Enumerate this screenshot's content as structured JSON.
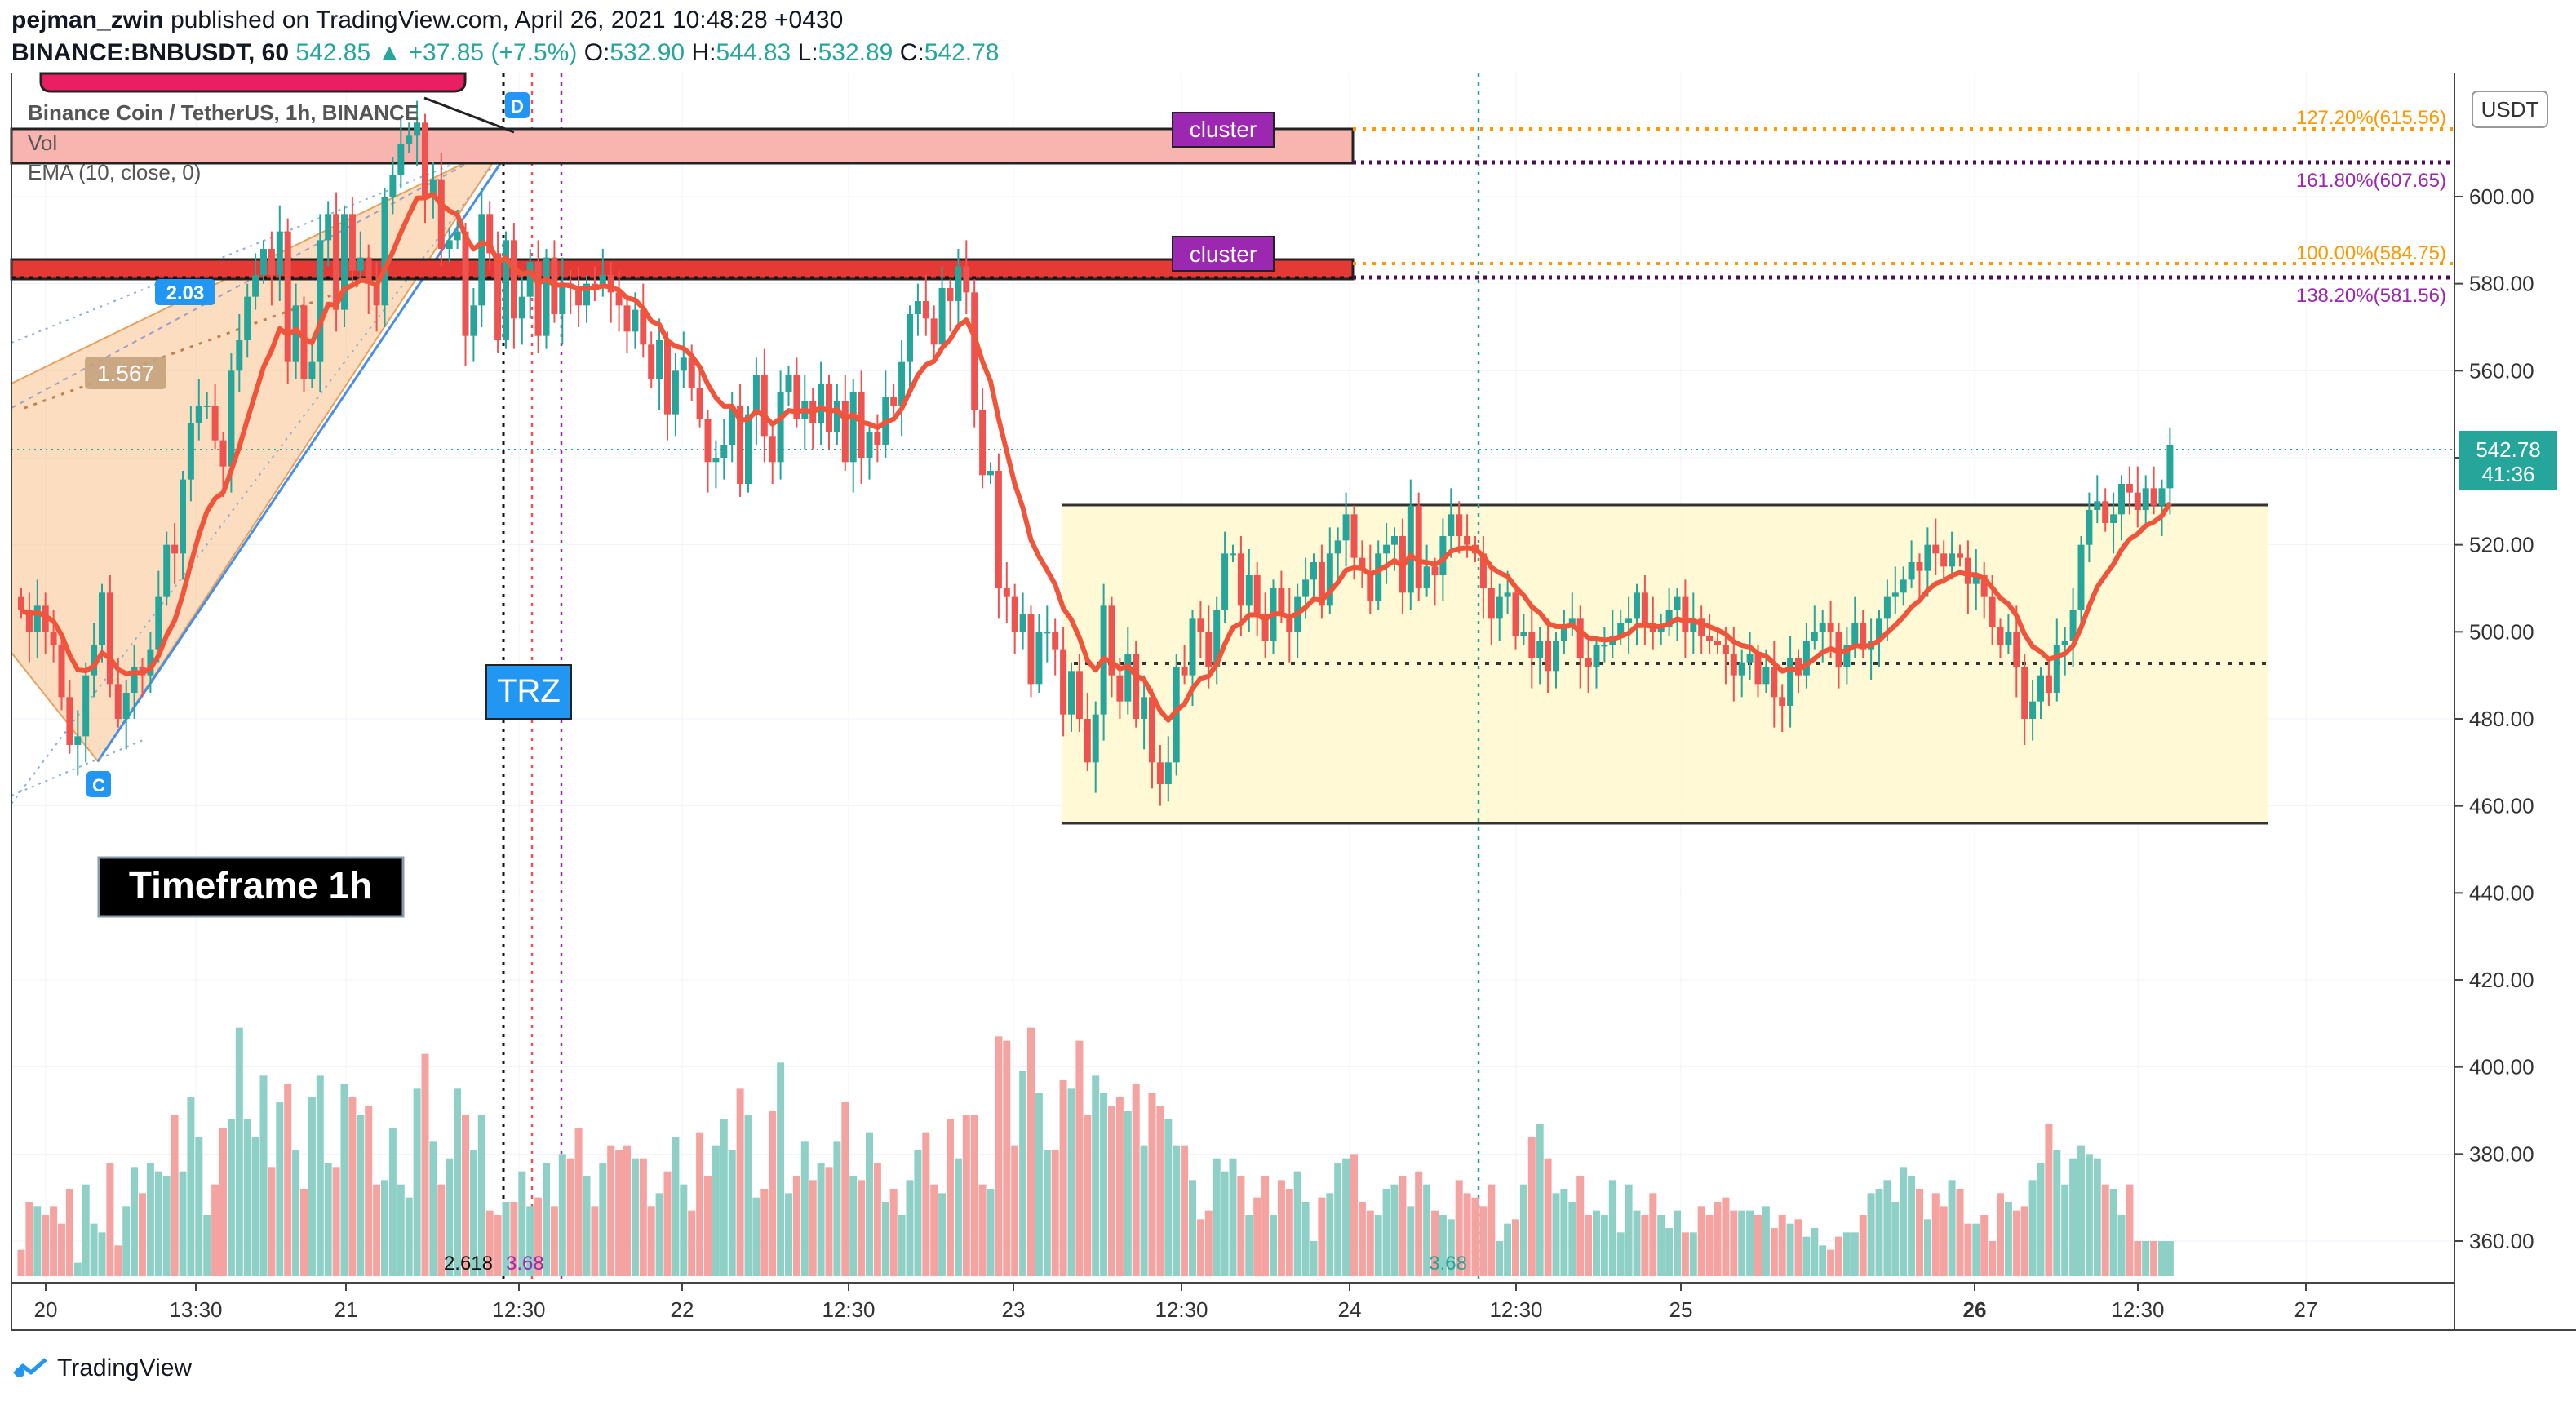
{
  "header": {
    "author": "pejman_zwin",
    "published_text": "published on TradingView.com, April 26, 2021 10:48:28 +0430",
    "symbol": "BINANCE:BNBUSDT, 60",
    "last": "542.85",
    "change": "▲ +37.85 (+7.5%)",
    "o_label": "O:",
    "o": "532.90",
    "h_label": "H:",
    "h": "544.83",
    "l_label": "L:",
    "l": "532.89",
    "c_label": "C:",
    "c": "542.78"
  },
  "legend": {
    "title": "Binance Coin / TetherUS, 1h, BINANCE",
    "vol": "Vol",
    "ema": "EMA (10, close, 0)"
  },
  "annotations": {
    "cluster_label": "cluster",
    "trz": "TRZ",
    "timeframe": "Timeframe 1h",
    "ratio_203": "2.03",
    "ratio_1567": "1.567",
    "pivot_d": "D",
    "pivot_c": "C",
    "fib_1272": "127.20%(615.56)",
    "fib_1618": "161.80%(607.65)",
    "fib_100": "100.00%(584.75)",
    "fib_1382": "138.20%(581.56)",
    "bottom_2618": "2.618",
    "bottom_368a": "3.68",
    "bottom_368b": "3.68"
  },
  "axis": {
    "currency": "USDT",
    "price_badge": "542.78",
    "time_badge": "41:36"
  },
  "footer": {
    "brand": "TradingView"
  },
  "colors": {
    "up": "#26a69a",
    "down": "#ef5350",
    "ema": "#f0553c",
    "vol_up": "#8fd0c6",
    "vol_down": "#f4a3a0",
    "cluster": "#9c27b0",
    "trz": "#2196f3",
    "orange": "#ff9800",
    "purple": "#9c27b0"
  },
  "chart_data": {
    "type": "candlestick",
    "title": "Binance Coin / TetherUS, 1h, BINANCE",
    "ylim": [
      350,
      630
    ],
    "y_ticks": [
      360,
      380,
      400,
      420,
      440,
      460,
      480,
      500,
      520,
      540,
      560,
      580,
      600
    ],
    "x_tick_labels": [
      "20",
      "13:30",
      "21",
      "12:30",
      "22",
      "12:30",
      "23",
      "12:30",
      "24",
      "12:30",
      "25",
      "26",
      "12:30",
      "27"
    ],
    "ema_period": 10,
    "levels": {
      "fib_127_2": 615.56,
      "fib_161_8": 607.65,
      "fib_100": 584.75,
      "fib_138_2": 581.56,
      "range_top": 529.5,
      "range_mid": 494,
      "range_bottom": 457.5,
      "last_price": 542.78
    },
    "ohlc_close": [
      505,
      500,
      506,
      500,
      497,
      485,
      474,
      476,
      490,
      497,
      509,
      488,
      480,
      486,
      492,
      490,
      496,
      508,
      520,
      518,
      535,
      548,
      552,
      552,
      544,
      538,
      560,
      567,
      577,
      582,
      588,
      582,
      592,
      562,
      575,
      558,
      562,
      590,
      596,
      574,
      596,
      583,
      586,
      580,
      575,
      600,
      605,
      612,
      614,
      617,
      600,
      604,
      588,
      590,
      592,
      568,
      575,
      596,
      587,
      567,
      590,
      572,
      577,
      585,
      568,
      586,
      573,
      580,
      579,
      575,
      580,
      579,
      582,
      578,
      575,
      569,
      574,
      566,
      558,
      567,
      550,
      560,
      563,
      556,
      549,
      539,
      540,
      543,
      552,
      534,
      550,
      559,
      545,
      539,
      555,
      559,
      549,
      553,
      548,
      557,
      546,
      553,
      539,
      555,
      540,
      546,
      543,
      554,
      552,
      562,
      573,
      576,
      572,
      566,
      579,
      576,
      584,
      578,
      551,
      536,
      537,
      510,
      508,
      500,
      504,
      488,
      500,
      500,
      496,
      481,
      491,
      480,
      470,
      481,
      506,
      490,
      484,
      495,
      480,
      485,
      470,
      465,
      470,
      492,
      490,
      503,
      500,
      492,
      505,
      518,
      518,
      506,
      513,
      504,
      498,
      510,
      504,
      500,
      508,
      512,
      516,
      506,
      518,
      521,
      527,
      517,
      514,
      507,
      518,
      520,
      522,
      509,
      529,
      510,
      515,
      513,
      522,
      527,
      522,
      520,
      518,
      510,
      503,
      508,
      509,
      499,
      500,
      494,
      498,
      491,
      498,
      501,
      503,
      494,
      492,
      497,
      497,
      499,
      502,
      503,
      509,
      502,
      500,
      501,
      505,
      508,
      500,
      503,
      499,
      498,
      497,
      495,
      490,
      493,
      495,
      488,
      492,
      485,
      483,
      494,
      490,
      498,
      500,
      502,
      500,
      492,
      497,
      502,
      496,
      498,
      503,
      508,
      509,
      512,
      516,
      514,
      520,
      518,
      515,
      518,
      517,
      511,
      513,
      508,
      501,
      497,
      500,
      492,
      480,
      484,
      490,
      486,
      497,
      498,
      505,
      520,
      528,
      530,
      525,
      527,
      534,
      532,
      528,
      533,
      529,
      533,
      543
    ],
    "volume": [
      358,
      369,
      368,
      366,
      368,
      364,
      372,
      355,
      373,
      364,
      362,
      378,
      359,
      368,
      377,
      371,
      378,
      376,
      375,
      389,
      376,
      393,
      384,
      366,
      373,
      386,
      388,
      409,
      388,
      384,
      398,
      377,
      392,
      396,
      381,
      372,
      393,
      398,
      378,
      377,
      396,
      393,
      389,
      391,
      373,
      374,
      386,
      373,
      370,
      395,
      403,
      383,
      373,
      379,
      395,
      389,
      381,
      389,
      367,
      366,
      369,
      369,
      376,
      368,
      370,
      378,
      368,
      380,
      379,
      386,
      375,
      368,
      378,
      382,
      381,
      382,
      379,
      379,
      368,
      371,
      376,
      384,
      373,
      367,
      385,
      375,
      382,
      388,
      381,
      395,
      389,
      370,
      372,
      390,
      401,
      371,
      375,
      383,
      374,
      378,
      377,
      383,
      392,
      375,
      374,
      385,
      378,
      369,
      372,
      366,
      374,
      381,
      385,
      373,
      371,
      388,
      379,
      389,
      389,
      373,
      372,
      407,
      406,
      382,
      399,
      409,
      394,
      381,
      381,
      397,
      395,
      406,
      389,
      398,
      394,
      391,
      393,
      390,
      396,
      382,
      394,
      391,
      388,
      382,
      382,
      374,
      365,
      367,
      379,
      376,
      379,
      375,
      366,
      370,
      375,
      366,
      374,
      372,
      376,
      369,
      360,
      370,
      371,
      378,
      379,
      380,
      369,
      367,
      366,
      372,
      373,
      375,
      368,
      376,
      373,
      367,
      366,
      365,
      374,
      371,
      370,
      368,
      373,
      360,
      364,
      365,
      373,
      384,
      387,
      379,
      371,
      372,
      369,
      375,
      366,
      367,
      366,
      374,
      362,
      373,
      367,
      366,
      371,
      366,
      363,
      367,
      362,
      362,
      368,
      366,
      369,
      370,
      367,
      367,
      367,
      366,
      368,
      363,
      366,
      364,
      365,
      361,
      363,
      359,
      358,
      361,
      362,
      362,
      366,
      371,
      372,
      374,
      369,
      377,
      375,
      372,
      365,
      371,
      368,
      374,
      372,
      364,
      364,
      366,
      360,
      371,
      369,
      367,
      368,
      374,
      378,
      387,
      381,
      373,
      379,
      382,
      380,
      379,
      373,
      372,
      366,
      373
    ]
  }
}
